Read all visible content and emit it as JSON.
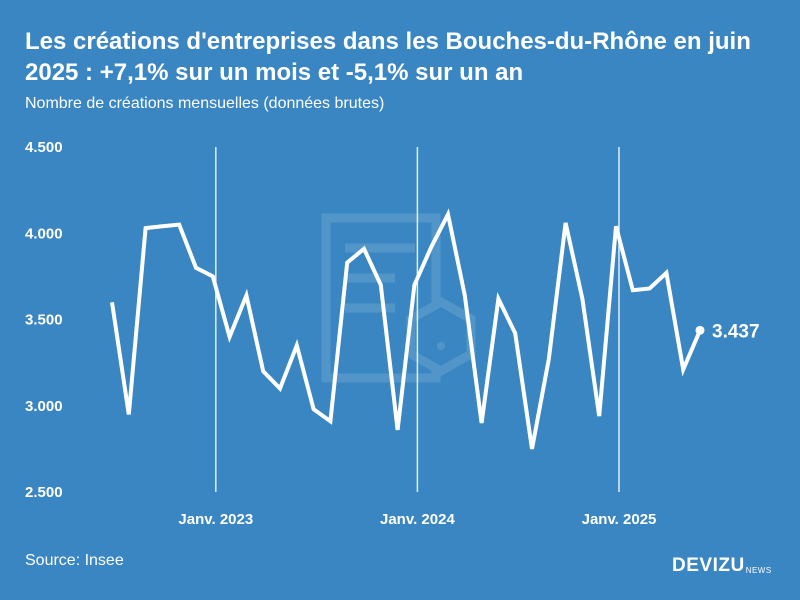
{
  "header": {
    "title": "Les créations d'entreprises dans les Bouches-du-Rhône en juin 2025 : +7,1% sur un mois et -5,1% sur un an",
    "subtitle": "Nombre de créations mensuelles (données brutes)"
  },
  "footer": {
    "source": "Source: Insee",
    "brand": "DEVIZU",
    "brand_sub": "NEWS"
  },
  "colors": {
    "background": "#3a86c2",
    "line": "#ffffff",
    "gridline": "#ffffff"
  },
  "chart_data": {
    "type": "line",
    "title": "Les créations d'entreprises dans les Bouches-du-Rhône en juin 2025 : +7,1% sur un mois et -5,1% sur un an",
    "subtitle": "Nombre de créations mensuelles (données brutes)",
    "xlabel": "",
    "ylabel": "",
    "ylim": [
      2500,
      4500
    ],
    "yticks": [
      2500,
      3000,
      3500,
      4000,
      4500
    ],
    "ytick_labels": [
      "2.500",
      "3.000",
      "3.500",
      "4.000",
      "4.500"
    ],
    "xticks": [
      {
        "label": "Janv. 2023",
        "index": 6
      },
      {
        "label": "Janv. 2024",
        "index": 18
      },
      {
        "label": "Janv. 2025",
        "index": 30
      }
    ],
    "x": [
      "2022-07",
      "2022-08",
      "2022-09",
      "2022-10",
      "2022-11",
      "2022-12",
      "2023-01",
      "2023-02",
      "2023-03",
      "2023-04",
      "2023-05",
      "2023-06",
      "2023-07",
      "2023-08",
      "2023-09",
      "2023-10",
      "2023-11",
      "2023-12",
      "2024-01",
      "2024-02",
      "2024-03",
      "2024-04",
      "2024-05",
      "2024-06",
      "2024-07",
      "2024-08",
      "2024-09",
      "2024-10",
      "2024-11",
      "2024-12",
      "2025-01",
      "2025-02",
      "2025-03",
      "2025-04",
      "2025-05",
      "2025-06"
    ],
    "series": [
      {
        "values": [
          3600,
          2950,
          4030,
          4040,
          4050,
          3800,
          3750,
          3400,
          3640,
          3200,
          3100,
          3350,
          2980,
          2910,
          3830,
          3910,
          3700,
          2860,
          3700,
          3920,
          4110,
          3640,
          2900,
          3620,
          3420,
          2750,
          3270,
          4060,
          3620,
          2940,
          4040,
          3670,
          3680,
          3770,
          3210,
          3437
        ]
      }
    ],
    "grid": "vertical lines at January ticks",
    "legend": "none",
    "end_label": "3.437"
  }
}
